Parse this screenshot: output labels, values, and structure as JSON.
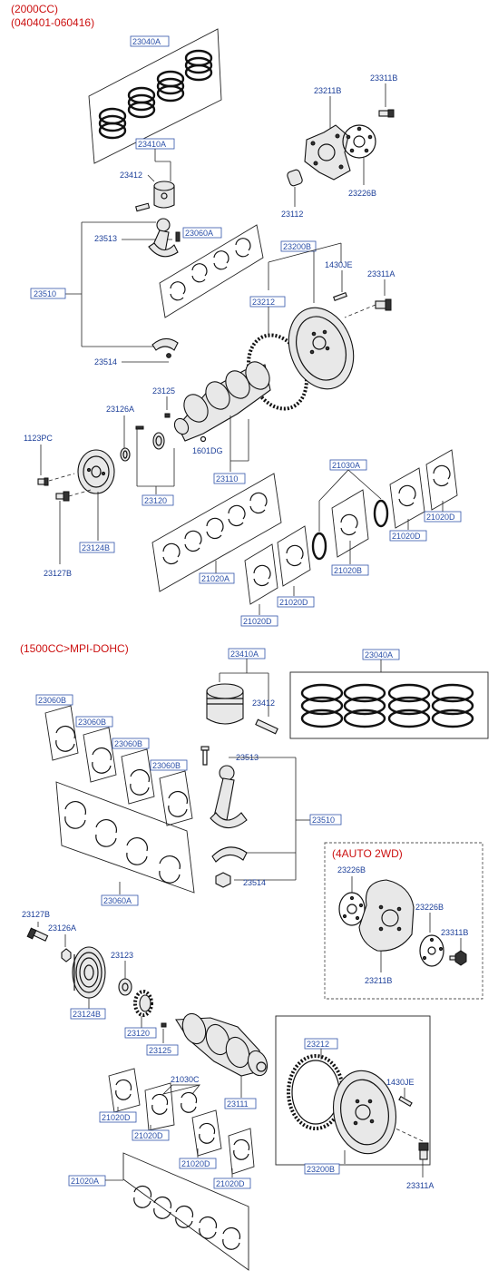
{
  "headers": {
    "engine_top_line1": "(2000CC)",
    "engine_top_line2": "(040401-060416)",
    "engine_bottom": "(1500CC>MPI-DOHC)",
    "auto_variant": "(4AUTO 2WD)"
  },
  "top": {
    "ring_set": "23040A",
    "piston": "23410A",
    "piston_pin": "23412",
    "flex_plate_boss": "23211B",
    "flex_bolt": "23311B",
    "flex_adapter": "23226B",
    "bushing": "23112",
    "rod_bolt": "23513",
    "rod_bearing": "23060A",
    "rod_assy": "23510",
    "rod_nut": "23514",
    "flywheel_assy": "23200B",
    "dowel": "1430JE",
    "flywheel_bolt": "23311A",
    "ring_gear": "23212",
    "key": "23125",
    "seal": "23126A",
    "pulley_bolt_small": "1123PC",
    "crank_plug": "1601DG",
    "crankshaft": "23110",
    "sprocket": "23120",
    "pulley": "23124B",
    "pulley_bolt": "23127B",
    "thrust_kit": "21030A",
    "main_bearing_a": "21020A",
    "main_bearing_b": "21020B",
    "main_bearing_d": "21020D"
  },
  "bottom": {
    "piston": "23410A",
    "ring_set": "23040A",
    "piston_pin": "23412",
    "rod_bearing_b": "23060B",
    "rod_bolt": "23513",
    "rod_assy": "23510",
    "rod_nut": "23514",
    "rod_bearing_a": "23060A",
    "flex_adapter": "23226B",
    "flex_bolt": "23311B",
    "flex_plate": "23211B",
    "pulley_bolt": "23127B",
    "seal": "23126A",
    "pulley": "23124B",
    "washer": "23123",
    "sprocket": "23120",
    "key": "23125",
    "crankshaft": "23111",
    "thrust_kit": "21030C",
    "main_bearing_d": "21020D",
    "main_bearing_a": "21020A",
    "ring_gear": "23212",
    "dowel": "1430JE",
    "flywheel_assy": "23200B",
    "flywheel_bolt": "23311A"
  }
}
